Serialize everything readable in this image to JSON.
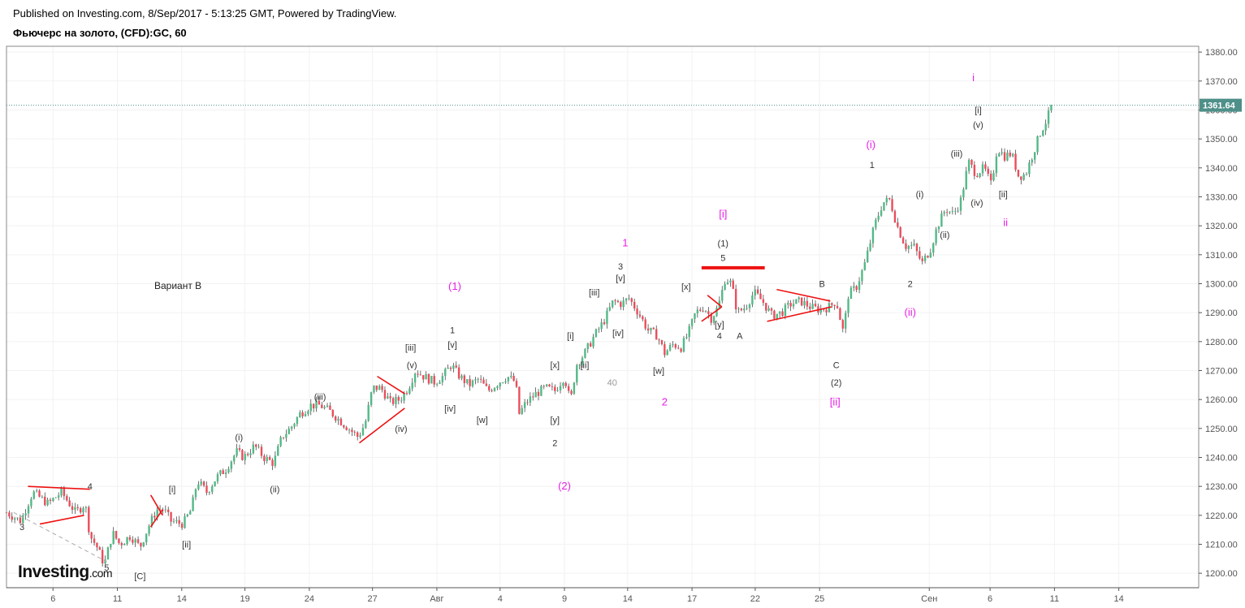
{
  "header": {
    "published": "Published on Investing.com, 8/Sep/2017 - 5:13:25 GMT, Powered by TradingView.",
    "title": "Фьючерс на золото, (CFD):GC, 60"
  },
  "logo": {
    "main": "Investing",
    "suffix": ".com"
  },
  "colors": {
    "up": "#53b987",
    "down": "#eb4d5c",
    "wick": "#333333",
    "grid": "#f2f2f2",
    "axis": "#555555",
    "last_price_bg": "#4e8f89",
    "wave_magenta": "#e81ee8",
    "lines_red": "#ee1111",
    "dashed_grey": "#aaaaaa"
  },
  "chart_data": {
    "type": "candlestick",
    "symbol": "GC",
    "interval": "60",
    "ylim": [
      1195,
      1382
    ],
    "y_ticks": [
      1200,
      1210,
      1220,
      1230,
      1240,
      1250,
      1260,
      1270,
      1280,
      1290,
      1300,
      1310,
      1320,
      1330,
      1340,
      1350,
      1360,
      1370,
      1380
    ],
    "y_tick_labels": [
      "1200.00",
      "1210.00",
      "1220.00",
      "1230.00",
      "1240.00",
      "1250.00",
      "1260.00",
      "1270.00",
      "1280.00",
      "1290.00",
      "1300.00",
      "1310.00",
      "1320.00",
      "1330.00",
      "1340.00",
      "1350.00",
      "1360.00",
      "1370.00",
      "1380.00"
    ],
    "xlim": [
      0,
      100
    ],
    "x_ticks": [
      {
        "x": 3.9,
        "label": "6"
      },
      {
        "x": 9.3,
        "label": "11"
      },
      {
        "x": 14.7,
        "label": "14"
      },
      {
        "x": 20.0,
        "label": "19"
      },
      {
        "x": 25.4,
        "label": "24"
      },
      {
        "x": 30.7,
        "label": "27"
      },
      {
        "x": 36.1,
        "label": "Авг"
      },
      {
        "x": 41.4,
        "label": "4"
      },
      {
        "x": 46.8,
        "label": "9"
      },
      {
        "x": 52.1,
        "label": "14"
      },
      {
        "x": 57.5,
        "label": "17"
      },
      {
        "x": 62.8,
        "label": "22"
      },
      {
        "x": 68.2,
        "label": "25"
      },
      {
        "x": 77.4,
        "label": "Сен"
      },
      {
        "x": 82.5,
        "label": "6"
      },
      {
        "x": 87.9,
        "label": "11"
      },
      {
        "x": 93.3,
        "label": "14"
      }
    ],
    "last_price": 1361.64,
    "last_price_label": "1361.64",
    "price_path": [
      [
        0.0,
        1221
      ],
      [
        1.2,
        1218
      ],
      [
        2.2,
        1228
      ],
      [
        3.5,
        1224
      ],
      [
        4.6,
        1228
      ],
      [
        5.8,
        1221
      ],
      [
        6.6,
        1224
      ],
      [
        7.0,
        1213
      ],
      [
        7.6,
        1209
      ],
      [
        8.2,
        1203
      ],
      [
        8.9,
        1214
      ],
      [
        9.5,
        1210
      ],
      [
        10.4,
        1213
      ],
      [
        11.2,
        1209
      ],
      [
        11.9,
        1216
      ],
      [
        12.6,
        1222
      ],
      [
        13.2,
        1222
      ],
      [
        13.8,
        1218
      ],
      [
        14.8,
        1217
      ],
      [
        15.5,
        1222
      ],
      [
        16.0,
        1232
      ],
      [
        16.8,
        1228
      ],
      [
        17.6,
        1233
      ],
      [
        18.4,
        1236
      ],
      [
        19.3,
        1242
      ],
      [
        19.9,
        1240
      ],
      [
        20.8,
        1244
      ],
      [
        21.6,
        1240
      ],
      [
        22.4,
        1238
      ],
      [
        23.1,
        1247
      ],
      [
        23.8,
        1250
      ],
      [
        24.6,
        1255
      ],
      [
        25.5,
        1258
      ],
      [
        26.3,
        1258
      ],
      [
        27.1,
        1256
      ],
      [
        27.9,
        1253
      ],
      [
        28.7,
        1250
      ],
      [
        29.5,
        1247
      ],
      [
        30.1,
        1252
      ],
      [
        30.7,
        1264
      ],
      [
        31.4,
        1264
      ],
      [
        32.2,
        1259
      ],
      [
        33.0,
        1260
      ],
      [
        33.7,
        1264
      ],
      [
        34.3,
        1270
      ],
      [
        35.0,
        1268
      ],
      [
        35.9,
        1266
      ],
      [
        36.6,
        1268
      ],
      [
        37.3,
        1272
      ],
      [
        38.0,
        1268
      ],
      [
        38.8,
        1265
      ],
      [
        39.6,
        1267
      ],
      [
        40.4,
        1263
      ],
      [
        41.3,
        1266
      ],
      [
        42.0,
        1268
      ],
      [
        42.7,
        1266
      ],
      [
        43.0,
        1255
      ],
      [
        43.6,
        1259
      ],
      [
        44.4,
        1262
      ],
      [
        45.2,
        1264
      ],
      [
        46.0,
        1263
      ],
      [
        46.8,
        1268
      ],
      [
        47.3,
        1259
      ],
      [
        47.8,
        1272
      ],
      [
        48.5,
        1276
      ],
      [
        49.3,
        1282
      ],
      [
        50.1,
        1287
      ],
      [
        50.9,
        1294
      ],
      [
        51.6,
        1293
      ],
      [
        52.2,
        1295
      ],
      [
        53.0,
        1290
      ],
      [
        53.8,
        1284
      ],
      [
        54.6,
        1282
      ],
      [
        55.2,
        1276
      ],
      [
        55.9,
        1279
      ],
      [
        56.6,
        1278
      ],
      [
        57.2,
        1283
      ],
      [
        57.8,
        1290
      ],
      [
        58.5,
        1292
      ],
      [
        59.1,
        1288
      ],
      [
        59.7,
        1292
      ],
      [
        60.3,
        1302
      ],
      [
        60.8,
        1300
      ],
      [
        61.3,
        1290
      ],
      [
        62.0,
        1292
      ],
      [
        62.7,
        1297
      ],
      [
        63.4,
        1294
      ],
      [
        64.2,
        1289
      ],
      [
        65.0,
        1290
      ],
      [
        65.8,
        1293
      ],
      [
        66.6,
        1294
      ],
      [
        67.4,
        1292
      ],
      [
        68.2,
        1291
      ],
      [
        69.0,
        1292
      ],
      [
        69.6,
        1294
      ],
      [
        70.2,
        1283
      ],
      [
        70.6,
        1296
      ],
      [
        71.3,
        1299
      ],
      [
        72.0,
        1307
      ],
      [
        72.8,
        1320
      ],
      [
        73.5,
        1328
      ],
      [
        74.1,
        1329
      ],
      [
        74.7,
        1320
      ],
      [
        75.4,
        1313
      ],
      [
        76.1,
        1313
      ],
      [
        76.8,
        1307
      ],
      [
        77.5,
        1312
      ],
      [
        78.1,
        1320
      ],
      [
        78.8,
        1326
      ],
      [
        79.4,
        1324
      ],
      [
        80.0,
        1328
      ],
      [
        80.7,
        1342
      ],
      [
        81.3,
        1338
      ],
      [
        82.0,
        1340
      ],
      [
        82.6,
        1334
      ],
      [
        83.1,
        1347
      ],
      [
        83.7,
        1344
      ],
      [
        84.3,
        1345
      ],
      [
        84.9,
        1337
      ],
      [
        85.5,
        1338
      ],
      [
        86.1,
        1345
      ],
      [
        86.7,
        1352
      ],
      [
        87.3,
        1357
      ],
      [
        87.7,
        1362
      ]
    ]
  },
  "annotations": {
    "variant_label": "Вариант B",
    "watermark_40": "40",
    "black_labels": [
      {
        "t": "3",
        "x": 1.3,
        "p": 1216
      },
      {
        "t": "4",
        "x": 7.0,
        "p": 1230
      },
      {
        "t": "5",
        "x": 8.4,
        "p": 1202
      },
      {
        "t": "[C]",
        "x": 11.2,
        "p": 1199
      },
      {
        "t": "[i]",
        "x": 13.9,
        "p": 1229
      },
      {
        "t": "[ii]",
        "x": 15.1,
        "p": 1210
      },
      {
        "t": "(i)",
        "x": 19.5,
        "p": 1247
      },
      {
        "t": "(ii)",
        "x": 22.5,
        "p": 1229
      },
      {
        "t": "(iii)",
        "x": 26.3,
        "p": 1261
      },
      {
        "t": "(iv)",
        "x": 33.1,
        "p": 1250
      },
      {
        "t": "(v)",
        "x": 34.0,
        "p": 1272
      },
      {
        "t": "[iii]",
        "x": 33.9,
        "p": 1278
      },
      {
        "t": "1",
        "x": 37.4,
        "p": 1284
      },
      {
        "t": "[v]",
        "x": 37.4,
        "p": 1279
      },
      {
        "t": "[iv]",
        "x": 37.2,
        "p": 1257
      },
      {
        "t": "[w]",
        "x": 39.9,
        "p": 1253
      },
      {
        "t": "[x]",
        "x": 46.0,
        "p": 1272
      },
      {
        "t": "[i]",
        "x": 47.3,
        "p": 1282
      },
      {
        "t": "[ii]",
        "x": 48.5,
        "p": 1272
      },
      {
        "t": "[y]",
        "x": 46.0,
        "p": 1253
      },
      {
        "t": "2",
        "x": 46.0,
        "p": 1245
      },
      {
        "t": "[iii]",
        "x": 49.3,
        "p": 1297
      },
      {
        "t": "3",
        "x": 51.5,
        "p": 1306
      },
      {
        "t": "[v]",
        "x": 51.5,
        "p": 1302
      },
      {
        "t": "[iv]",
        "x": 51.3,
        "p": 1283
      },
      {
        "t": "[w]",
        "x": 54.7,
        "p": 1270
      },
      {
        "t": "[x]",
        "x": 57.0,
        "p": 1299
      },
      {
        "t": "[y]",
        "x": 59.8,
        "p": 1286
      },
      {
        "t": "4",
        "x": 59.8,
        "p": 1282
      },
      {
        "t": "A",
        "x": 61.5,
        "p": 1282
      },
      {
        "t": "(1)",
        "x": 60.1,
        "p": 1314
      },
      {
        "t": "5",
        "x": 60.1,
        "p": 1309
      },
      {
        "t": "B",
        "x": 68.4,
        "p": 1300
      },
      {
        "t": "C",
        "x": 69.6,
        "p": 1272
      },
      {
        "t": "(2)",
        "x": 69.6,
        "p": 1266
      },
      {
        "t": "1",
        "x": 72.6,
        "p": 1341
      },
      {
        "t": "2",
        "x": 75.8,
        "p": 1300
      },
      {
        "t": "(i)",
        "x": 76.6,
        "p": 1331
      },
      {
        "t": "(ii)",
        "x": 78.7,
        "p": 1317
      },
      {
        "t": "(iii)",
        "x": 79.7,
        "p": 1345
      },
      {
        "t": "(iv)",
        "x": 81.4,
        "p": 1328
      },
      {
        "t": "(v)",
        "x": 81.5,
        "p": 1355
      },
      {
        "t": "[i]",
        "x": 81.5,
        "p": 1360
      },
      {
        "t": "[ii]",
        "x": 83.6,
        "p": 1331
      }
    ],
    "magenta_labels": [
      {
        "t": "(1)",
        "x": 37.6,
        "p": 1299
      },
      {
        "t": "1",
        "x": 51.9,
        "p": 1314
      },
      {
        "t": "2",
        "x": 55.2,
        "p": 1259
      },
      {
        "t": "(2)",
        "x": 46.8,
        "p": 1230
      },
      {
        "t": "[i]",
        "x": 60.1,
        "p": 1324
      },
      {
        "t": "[ii]",
        "x": 69.5,
        "p": 1259
      },
      {
        "t": "(i)",
        "x": 72.5,
        "p": 1348
      },
      {
        "t": "(ii)",
        "x": 75.8,
        "p": 1290
      },
      {
        "t": "i",
        "x": 81.1,
        "p": 1371
      },
      {
        "t": "ii",
        "x": 83.8,
        "p": 1321
      }
    ],
    "red_lines": [
      [
        [
          1.8,
          1230
        ],
        [
          7.0,
          1229
        ]
      ],
      [
        [
          2.8,
          1217
        ],
        [
          6.5,
          1220
        ]
      ],
      [
        [
          12.1,
          1227
        ],
        [
          13.1,
          1220
        ]
      ],
      [
        [
          12.1,
          1216
        ],
        [
          13.1,
          1222
        ]
      ],
      [
        [
          31.1,
          1268
        ],
        [
          33.4,
          1262
        ]
      ],
      [
        [
          29.6,
          1245
        ],
        [
          33.4,
          1257
        ]
      ],
      [
        [
          58.8,
          1296
        ],
        [
          60.0,
          1292
        ]
      ],
      [
        [
          58.3,
          1287
        ],
        [
          60.0,
          1292
        ]
      ],
      [
        [
          64.6,
          1298
        ],
        [
          69.1,
          1294
        ]
      ],
      [
        [
          63.8,
          1287
        ],
        [
          69.2,
          1292
        ]
      ]
    ],
    "thick_red_line": [
      [
        58.3,
        1305.5
      ],
      [
        63.6,
        1305.5
      ]
    ],
    "dashed_line": [
      [
        0.6,
        1221
      ],
      [
        8.4,
        1204
      ]
    ]
  }
}
